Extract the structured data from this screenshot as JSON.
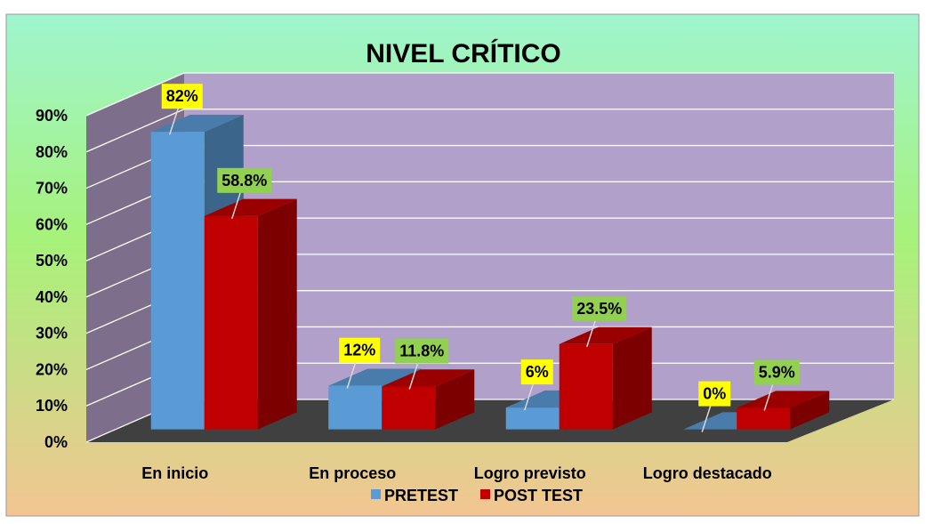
{
  "chart_data": {
    "type": "bar3d",
    "title": "NIVEL CRÍTICO",
    "categories": [
      "En inicio",
      "En proceso",
      "Logro previsto",
      "Logro destacado"
    ],
    "series": [
      {
        "name": "PRETEST",
        "color": "#5b9bd5",
        "label_color": "#ffff00",
        "values": [
          82,
          12,
          6,
          0
        ],
        "value_labels": [
          "82%",
          "12%",
          "6%",
          "0%"
        ]
      },
      {
        "name": "POST TEST",
        "color": "#c00000",
        "label_color": "#92d050",
        "values": [
          58.8,
          11.8,
          23.5,
          5.9
        ],
        "value_labels": [
          "58.8%",
          "11.8%",
          "23.5%",
          "5.9%"
        ]
      }
    ],
    "ylim": [
      0,
      90
    ],
    "yticks": [
      {
        "value": 0,
        "label": "0%"
      },
      {
        "value": 10,
        "label": "10%"
      },
      {
        "value": 20,
        "label": "20%"
      },
      {
        "value": 30,
        "label": "30%"
      },
      {
        "value": 40,
        "label": "40%"
      },
      {
        "value": 50,
        "label": "50%"
      },
      {
        "value": 60,
        "label": "60%"
      },
      {
        "value": 70,
        "label": "70%"
      },
      {
        "value": 80,
        "label": "80%"
      },
      {
        "value": 90,
        "label": "90%"
      }
    ],
    "grid": true,
    "legend": "bottom"
  }
}
